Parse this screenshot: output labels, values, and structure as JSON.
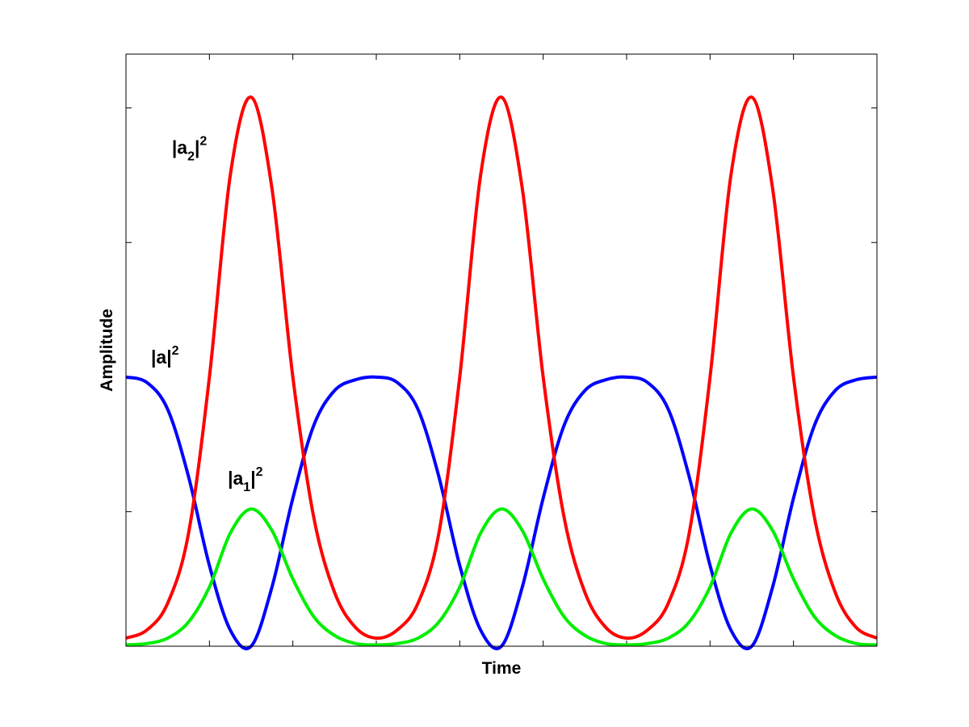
{
  "chart_data": {
    "type": "line",
    "xlabel": "Time",
    "ylabel": "Amplitude",
    "xlim": [
      0,
      9
    ],
    "ylim": [
      0,
      2.2
    ],
    "x_ticks_unlabeled": [
      0,
      1,
      2,
      3,
      4,
      5,
      6,
      7,
      8,
      9
    ],
    "y_ticks_unlabeled": [
      0,
      0.5,
      1,
      1.5,
      2
    ],
    "grid": false,
    "x": [
      0,
      0.25,
      0.5,
      0.75,
      1.0,
      1.25,
      1.5,
      1.75,
      2.0,
      2.25,
      2.5,
      2.75,
      3.0,
      3.25,
      3.5,
      3.75,
      4.0,
      4.25,
      4.5,
      4.75,
      5.0,
      5.25,
      5.5,
      5.75,
      6.0,
      6.25,
      6.5,
      6.75,
      7.0,
      7.25,
      7.5,
      7.75,
      8.0,
      8.25,
      8.5,
      8.75,
      9.0
    ],
    "series": [
      {
        "key": "a",
        "color": "#0000ff",
        "values": [
          1.0,
          0.98,
          0.88,
          0.63,
          0.3,
          0.06,
          0.0,
          0.22,
          0.55,
          0.82,
          0.95,
          0.99,
          1.0,
          0.98,
          0.88,
          0.63,
          0.3,
          0.06,
          0.0,
          0.22,
          0.55,
          0.82,
          0.95,
          0.99,
          1.0,
          0.98,
          0.88,
          0.63,
          0.3,
          0.06,
          0.0,
          0.22,
          0.55,
          0.82,
          0.95,
          0.99,
          1.0
        ]
      },
      {
        "key": "a2",
        "color": "#ff0000",
        "values": [
          0.03,
          0.06,
          0.16,
          0.42,
          1.0,
          1.75,
          2.04,
          1.7,
          1.0,
          0.48,
          0.2,
          0.07,
          0.03,
          0.06,
          0.16,
          0.42,
          1.0,
          1.75,
          2.04,
          1.7,
          1.0,
          0.48,
          0.2,
          0.07,
          0.03,
          0.06,
          0.16,
          0.42,
          1.0,
          1.75,
          2.04,
          1.7,
          1.0,
          0.48,
          0.2,
          0.07,
          0.03
        ]
      },
      {
        "key": "a1",
        "color": "#00ee00",
        "values": [
          0.005,
          0.01,
          0.03,
          0.09,
          0.22,
          0.42,
          0.51,
          0.43,
          0.25,
          0.11,
          0.04,
          0.01,
          0.005,
          0.01,
          0.03,
          0.09,
          0.22,
          0.42,
          0.51,
          0.43,
          0.25,
          0.11,
          0.04,
          0.01,
          0.005,
          0.01,
          0.03,
          0.09,
          0.22,
          0.42,
          0.51,
          0.43,
          0.25,
          0.11,
          0.04,
          0.01,
          0.005
        ]
      }
    ],
    "annotations": [
      {
        "key": "a2",
        "base": "|a",
        "sub": "2",
        "close": "|",
        "sup": "2",
        "x": 0.55,
        "y": 1.83
      },
      {
        "key": "a",
        "base": "|a",
        "sub": "",
        "close": "|",
        "sup": "2",
        "x": 0.3,
        "y": 1.05
      },
      {
        "key": "a1",
        "base": "|a",
        "sub": "1",
        "close": "|",
        "sup": "2",
        "x": 1.22,
        "y": 0.6
      }
    ]
  }
}
